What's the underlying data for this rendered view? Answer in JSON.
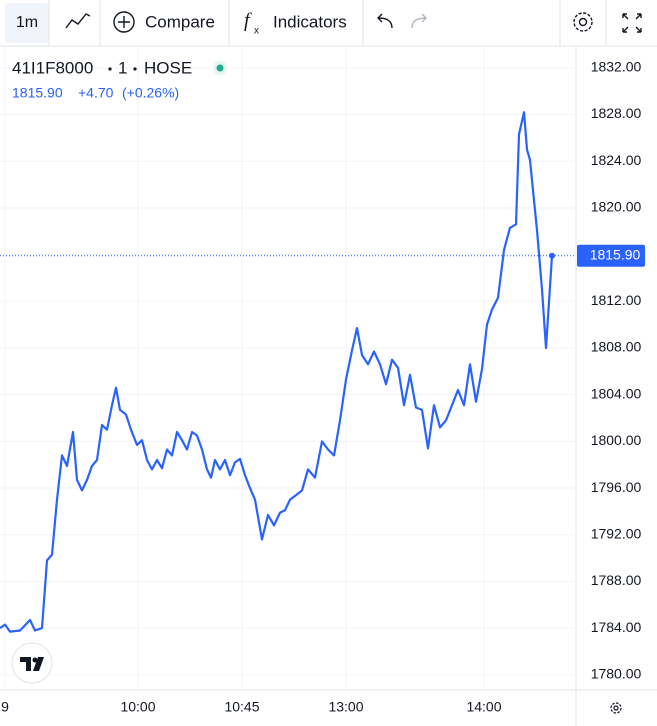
{
  "toolbar": {
    "interval": "1m",
    "compare": "Compare",
    "indicators": "Indicators"
  },
  "legend": {
    "symbol": "41I1F8000",
    "interval": "1",
    "exchange": "HOSE",
    "price": "1815.90",
    "change": "+4.70",
    "change_pct": "(+0.26%)"
  },
  "chart_data": {
    "type": "line",
    "color": "#2962ff",
    "x": [
      0,
      5,
      10,
      20,
      30,
      35,
      42,
      47,
      52,
      57,
      62,
      67,
      73,
      77,
      82,
      87,
      92,
      97,
      102,
      107,
      112,
      116,
      120,
      126,
      131,
      137,
      142,
      147,
      152,
      157,
      162,
      167,
      172,
      177,
      182,
      187,
      192,
      197,
      202,
      207,
      211,
      215,
      220,
      225,
      230,
      235,
      240,
      245,
      250,
      255,
      262,
      268,
      274,
      280,
      285,
      290,
      296,
      302,
      308,
      315,
      322,
      328,
      334,
      340,
      346,
      352,
      357,
      362,
      368,
      374,
      380,
      386,
      392,
      398,
      404,
      410,
      416,
      422,
      428,
      434,
      440,
      446,
      452,
      458,
      464,
      470,
      476,
      482,
      487,
      492,
      498,
      504,
      510,
      516,
      519,
      524,
      527,
      530,
      533,
      537,
      542,
      546,
      552
    ],
    "values": [
      1784.0,
      1784.3,
      1783.7,
      1783.8,
      1784.7,
      1783.8,
      1784.0,
      1789.8,
      1790.3,
      1795.0,
      1798.8,
      1797.9,
      1800.8,
      1796.7,
      1795.8,
      1796.7,
      1797.9,
      1798.4,
      1801.4,
      1801.0,
      1803.1,
      1804.6,
      1802.7,
      1802.3,
      1801.0,
      1799.7,
      1800.1,
      1798.4,
      1797.6,
      1798.4,
      1797.7,
      1799.3,
      1798.8,
      1800.8,
      1800.1,
      1799.3,
      1800.8,
      1800.5,
      1799.3,
      1797.6,
      1796.9,
      1798.4,
      1797.6,
      1798.4,
      1797.1,
      1798.2,
      1798.5,
      1797.1,
      1796.0,
      1795.0,
      1791.6,
      1793.7,
      1792.8,
      1793.9,
      1794.1,
      1795.0,
      1795.4,
      1795.8,
      1797.6,
      1796.9,
      1800.0,
      1799.3,
      1798.8,
      1801.8,
      1805.3,
      1807.8,
      1809.7,
      1807.4,
      1806.6,
      1807.7,
      1806.6,
      1804.9,
      1807.0,
      1806.3,
      1803.1,
      1805.7,
      1802.9,
      1802.7,
      1799.4,
      1803.1,
      1801.2,
      1801.8,
      1803.1,
      1804.4,
      1803.1,
      1806.6,
      1803.4,
      1806.2,
      1810.0,
      1811.3,
      1812.3,
      1816.4,
      1818.3,
      1818.6,
      1826.3,
      1828.2,
      1825.0,
      1824.1,
      1821.5,
      1818.1,
      1813.0,
      1808.0,
      1815.9
    ],
    "xlim": [
      0,
      576
    ],
    "xticks": [
      {
        "value": 5,
        "label": "9"
      },
      {
        "value": 138,
        "label": "10:00"
      },
      {
        "value": 242,
        "label": "10:45"
      },
      {
        "value": 346,
        "label": "13:00"
      },
      {
        "value": 484,
        "label": "14:00"
      }
    ],
    "ylim": [
      1778.7,
      1833.7
    ],
    "yticks": [
      {
        "value": 1780,
        "label": "1780.00"
      },
      {
        "value": 1784,
        "label": "1784.00"
      },
      {
        "value": 1788,
        "label": "1788.00"
      },
      {
        "value": 1792,
        "label": "1792.00"
      },
      {
        "value": 1796,
        "label": "1796.00"
      },
      {
        "value": 1800,
        "label": "1800.00"
      },
      {
        "value": 1804,
        "label": "1804.00"
      },
      {
        "value": 1808,
        "label": "1808.00"
      },
      {
        "value": 1812,
        "label": "1812.00"
      },
      {
        "value": 1816,
        "label": "1816.00"
      },
      {
        "value": 1820,
        "label": "1820.00"
      },
      {
        "value": 1824,
        "label": "1824.00"
      },
      {
        "value": 1828,
        "label": "1828.00"
      },
      {
        "value": 1832,
        "label": "1832.00"
      }
    ],
    "last_value": 1815.9,
    "last_label": "1815.90",
    "grid": true
  }
}
